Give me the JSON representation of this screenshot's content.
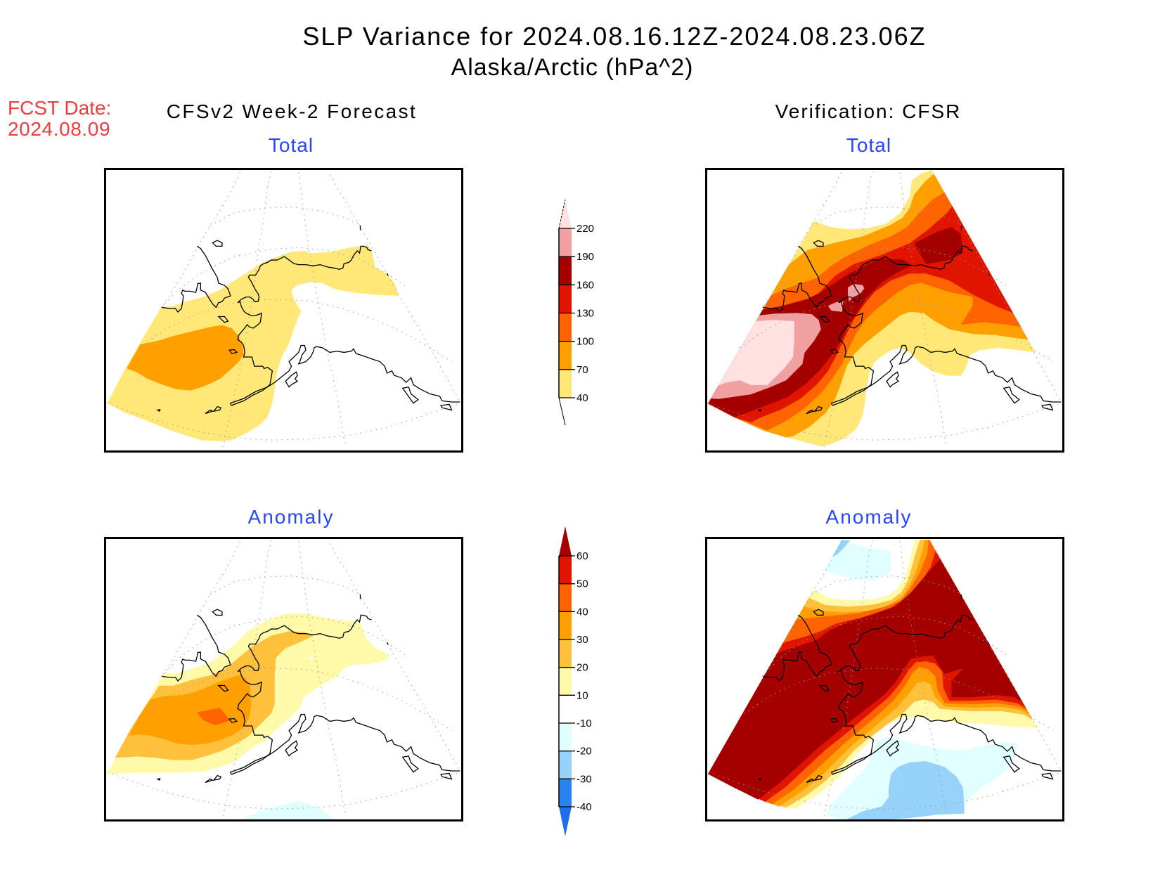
{
  "figure": {
    "title": "SLP Variance for 2024.08.16.12Z-2024.08.23.06Z",
    "subtitle": "Alaska/Arctic (hPa^2)",
    "forecast_date_label": "FCST Date:",
    "forecast_date": "2024.08.09",
    "column_titles": [
      "CFSv2 Week-2 Forecast",
      "Verification: CFSR"
    ],
    "panel_titles": {
      "total": "Total",
      "anomaly": "Anomaly"
    }
  },
  "colors": {
    "title": "#000000",
    "panel_title": "#2846ff",
    "forecast_date": "#f03c3c",
    "coastline": "#000000",
    "graticule": "#9a9a9a"
  },
  "chart_data": {
    "type": "heatmap",
    "title": "SLP Variance for 2024.08.16.12Z-2024.08.23.06Z",
    "subtitle": "Alaska/Arctic (hPa^2)",
    "variable": "SLP variance",
    "units": "hPa^2",
    "region": "Alaska/Arctic",
    "valid_period": "2024.08.16.12Z-2024.08.23.06Z",
    "forecast_date": "2024.08.09",
    "colorbars": {
      "total": {
        "levels": [
          40,
          70,
          100,
          130,
          160,
          190,
          220
        ],
        "labels": [
          "40",
          "70",
          "100",
          "130",
          "160",
          "190",
          "220"
        ],
        "colors": [
          "#ffe878",
          "#ffa000",
          "#ff6400",
          "#e11400",
          "#a50000",
          "#f0a0a0"
        ],
        "under": "#ffffff",
        "over": "#ffe1e1",
        "extend": "both"
      },
      "anomaly": {
        "levels": [
          -40,
          -30,
          -20,
          -10,
          10,
          20,
          30,
          40,
          50,
          60
        ],
        "labels": [
          "-40",
          "-30",
          "-20",
          "-10",
          "10",
          "20",
          "30",
          "40",
          "50",
          "60"
        ],
        "colors": [
          "#2882f0",
          "#96d2fa",
          "#e1ffff",
          "#ffffff",
          "#fffaaa",
          "#ffc03c",
          "#ffa000",
          "#ff6400",
          "#e11400"
        ],
        "under": "#1e6eeb",
        "over": "#a50000",
        "extend": "both"
      }
    },
    "panels": [
      {
        "name": "forecast_total",
        "column": "CFSv2 Week-2 Forecast",
        "row": "Total",
        "colorbar": "total",
        "categories_present": [
          "40-70",
          "70-100"
        ],
        "max_category": "70-100",
        "max_region": "Bering Sea / Aleutians"
      },
      {
        "name": "verification_total",
        "column": "Verification: CFSR",
        "row": "Total",
        "colorbar": "total",
        "categories_present": [
          "40-70",
          "70-100",
          "100-130",
          "130-160",
          "160-190",
          "190-220",
          ">220"
        ],
        "max_category": ">220",
        "max_region": "western Bering Sea"
      },
      {
        "name": "forecast_anomaly",
        "column": "CFSv2 Week-2 Forecast",
        "row": "Anomaly",
        "colorbar": "anomaly",
        "categories_present": [
          "-20 to -10",
          "10-20",
          "20-30",
          "30-40",
          "40-50"
        ],
        "max_category": "40-50",
        "min_category": "-20 to -10"
      },
      {
        "name": "verification_anomaly",
        "column": "Verification: CFSR",
        "row": "Anomaly",
        "colorbar": "anomaly",
        "categories_present": [
          "-30 to -20",
          "-20 to -10",
          "10-20",
          "20-30",
          "30-40",
          "40-50",
          "50-60",
          ">60"
        ],
        "max_category": ">60",
        "min_category": "-30 to -20"
      }
    ]
  }
}
